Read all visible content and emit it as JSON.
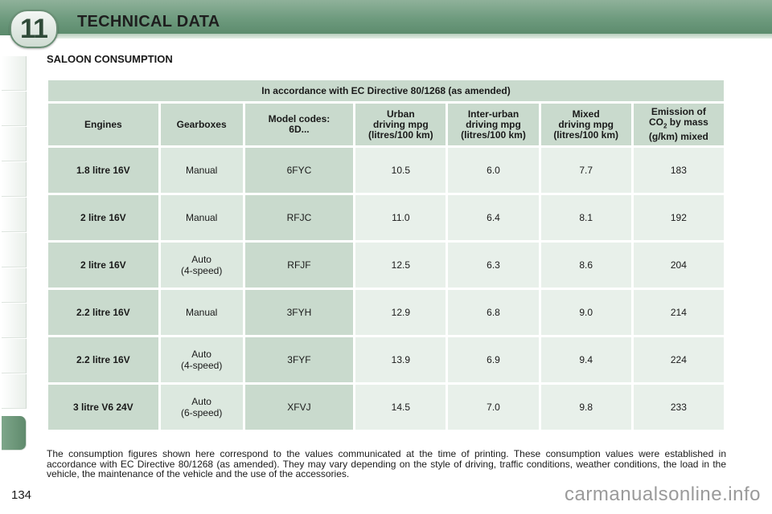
{
  "header": {
    "chapter_number": "11",
    "title": "TECHNICAL DATA"
  },
  "section": {
    "title": "SALOON CONSUMPTION"
  },
  "table": {
    "directive": "In accordance with EC Directive 80/1268 (as amended)",
    "columns": [
      "Engines",
      "Gearboxes",
      "Model codes: 6D...",
      "Urban driving mpg (litres/100 km)",
      "Inter-urban driving mpg (litres/100 km)",
      "Mixed driving mpg (litres/100 km)",
      "Emission of CO2 by mass (g/km) mixed"
    ],
    "rows": [
      {
        "engine": "1.8 litre 16V",
        "gearbox": "Manual",
        "gearbox_detail": "",
        "code": "6FYC",
        "urban": "10.5",
        "interurban": "6.0",
        "mixed": "7.7",
        "co2": "183"
      },
      {
        "engine": "2 litre 16V",
        "gearbox": "Manual",
        "gearbox_detail": "",
        "code": "RFJC",
        "urban": "11.0",
        "interurban": "6.4",
        "mixed": "8.1",
        "co2": "192"
      },
      {
        "engine": "2 litre 16V",
        "gearbox": "Auto",
        "gearbox_detail": "(4-speed)",
        "code": "RFJF",
        "urban": "12.5",
        "interurban": "6.3",
        "mixed": "8.6",
        "co2": "204"
      },
      {
        "engine": "2.2 litre 16V",
        "gearbox": "Manual",
        "gearbox_detail": "",
        "code": "3FYH",
        "urban": "12.9",
        "interurban": "6.8",
        "mixed": "9.0",
        "co2": "214"
      },
      {
        "engine": "2.2 litre 16V",
        "gearbox": "Auto",
        "gearbox_detail": "(4-speed)",
        "code": "3FYF",
        "urban": "13.9",
        "interurban": "6.9",
        "mixed": "9.4",
        "co2": "224"
      },
      {
        "engine": "3 litre V6 24V",
        "gearbox": "Auto",
        "gearbox_detail": "(6-speed)",
        "code": "XFVJ",
        "urban": "14.5",
        "interurban": "7.0",
        "mixed": "9.8",
        "co2": "233"
      }
    ]
  },
  "footnote": "The consumption figures shown here correspond to the values communicated at the time of printing. These consumption values were established in accordance with EC Directive 80/1268 (as amended). They may vary depending on the style of driving, traffic conditions, weather conditions, the load in the vehicle, the maintenance of the vehicle and the use of the accessories.",
  "page_number": "134",
  "watermark": "carmanualsonline.info",
  "colors": {
    "header": "#6d9a7d",
    "cell_dark": "#c9dacd",
    "cell_light": "#e8f0ea"
  }
}
